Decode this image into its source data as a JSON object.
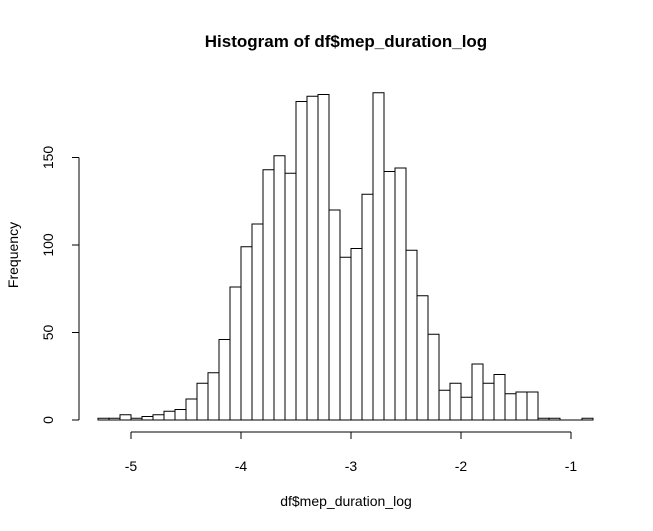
{
  "chart_data": {
    "type": "bar",
    "title": "Histogram of df$mep_duration_log",
    "xlabel": "df$mep_duration_log",
    "ylabel": "Frequency",
    "bin_width": 0.1,
    "bins_start": [
      -5.3,
      -5.2,
      -5.1,
      -5.0,
      -4.9,
      -4.8,
      -4.7,
      -4.6,
      -4.5,
      -4.4,
      -4.3,
      -4.2,
      -4.1,
      -4.0,
      -3.9,
      -3.8,
      -3.7,
      -3.6,
      -3.5,
      -3.4,
      -3.3,
      -3.2,
      -3.1,
      -3.0,
      -2.9,
      -2.8,
      -2.7,
      -2.6,
      -2.5,
      -2.4,
      -2.3,
      -2.2,
      -2.1,
      -2.0,
      -1.9,
      -1.8,
      -1.7,
      -1.6,
      -1.5,
      -1.4,
      -1.3,
      -1.2,
      -1.1,
      -1.0,
      -0.9
    ],
    "values": [
      1,
      1,
      3,
      1,
      2,
      3,
      5,
      6,
      12,
      21,
      27,
      46,
      76,
      99,
      112,
      143,
      151,
      141,
      182,
      185,
      186,
      120,
      93,
      98,
      129,
      187,
      142,
      144,
      97,
      71,
      49,
      17,
      21,
      13,
      32,
      21,
      26,
      15,
      16,
      16,
      1,
      1,
      0,
      0,
      1
    ],
    "xlim": [
      -5.3,
      -0.8
    ],
    "ylim": [
      0,
      187
    ],
    "x_ticks": [
      -5,
      -4,
      -3,
      -2,
      -1
    ],
    "y_ticks": [
      0,
      50,
      100,
      150
    ],
    "grid": false
  }
}
